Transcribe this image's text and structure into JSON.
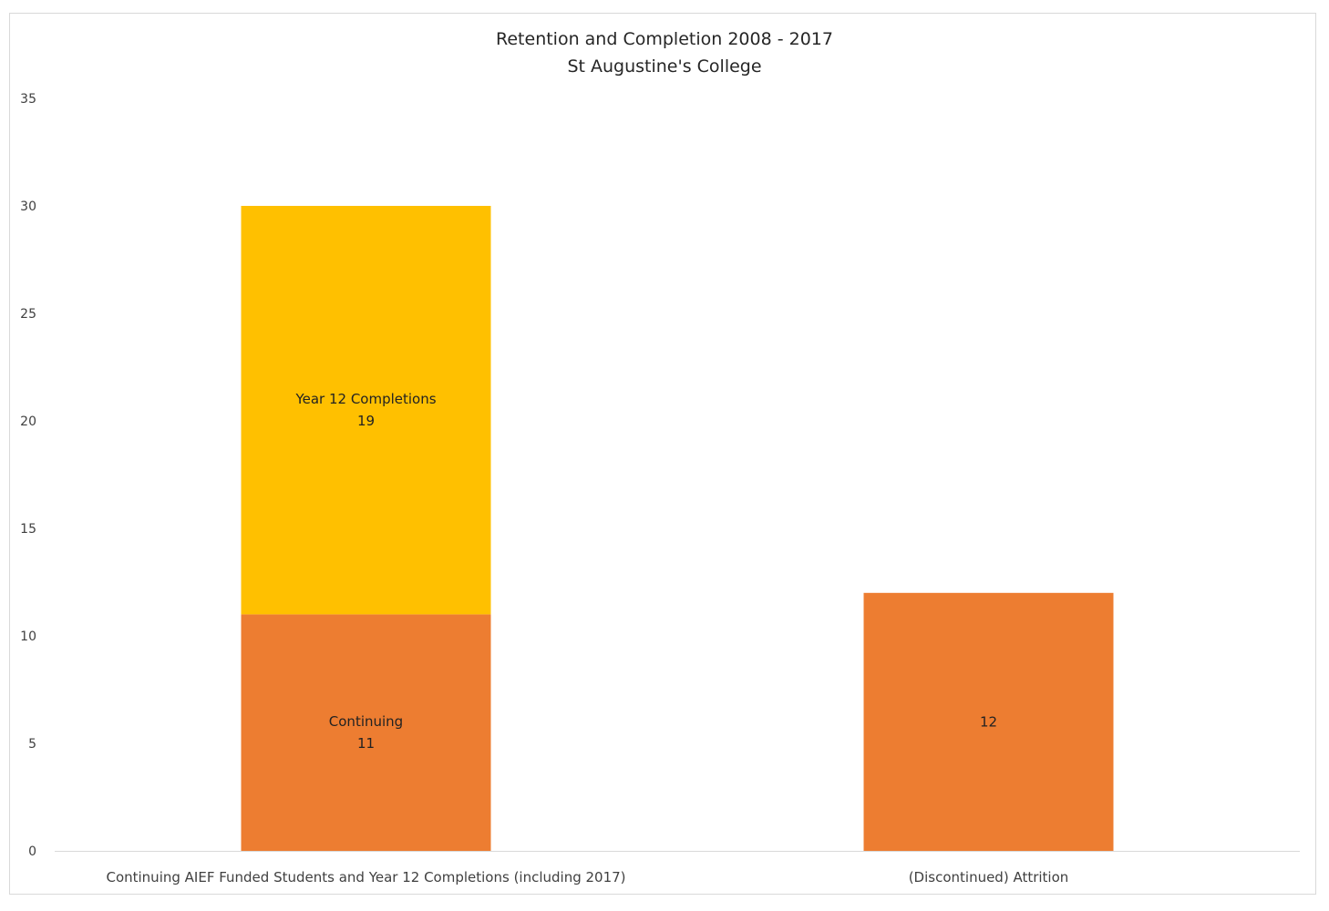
{
  "chart_data": {
    "type": "bar",
    "stacked": true,
    "title": "Retention and Completion 2008 - 2017",
    "subtitle": "St Augustine's College",
    "categories": [
      "Continuing AIEF Funded Students and Year 12 Completions (including 2017)",
      "(Discontinued) Attrition"
    ],
    "series": [
      {
        "name": "Continuing",
        "color": "#ED7D31",
        "values": [
          11,
          12
        ],
        "labels": [
          "Continuing\n11",
          "12"
        ]
      },
      {
        "name": "Year 12 Completions",
        "color": "#FFC000",
        "values": [
          19,
          null
        ],
        "labels": [
          "Year 12 Completions\n19",
          ""
        ]
      }
    ],
    "yticks": [
      "0",
      "5",
      "10",
      "15",
      "20",
      "25",
      "30",
      "35"
    ],
    "ylim": [
      0,
      35
    ],
    "xlabel": "",
    "ylabel": "",
    "grid": false,
    "legend": "none"
  }
}
